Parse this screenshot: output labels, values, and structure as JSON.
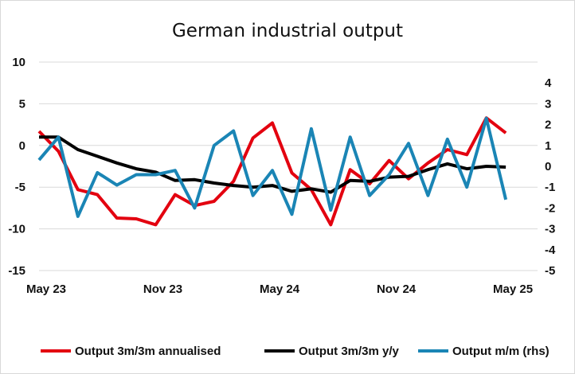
{
  "chart_data": {
    "type": "line",
    "title": "German industrial output",
    "x": [
      "May 23",
      "Jun 23",
      "Jul 23",
      "Aug 23",
      "Sep 23",
      "Oct 23",
      "Nov 23",
      "Dec 23",
      "Jan 24",
      "Feb 24",
      "Mar 24",
      "Apr 24",
      "May 24",
      "Jun 24",
      "Jul 24",
      "Aug 24",
      "Sep 24",
      "Oct 24",
      "Nov 24",
      "Dec 24",
      "Jan 25",
      "Feb 25",
      "Mar 25",
      "Apr 25",
      "May 25"
    ],
    "x_tick_labels": [
      "May 23",
      "Nov 23",
      "May 24",
      "Nov 24",
      "May 25"
    ],
    "x_tick_indices": [
      0,
      6,
      12,
      18,
      24
    ],
    "y_left": {
      "min": -15,
      "max": 10,
      "ticks": [
        10,
        5,
        0,
        -5,
        -10,
        -15
      ]
    },
    "y_right": {
      "min": -5,
      "max": 5,
      "ticks": [
        4,
        3,
        2,
        1,
        0,
        -1,
        -2,
        -3,
        -4,
        -5
      ]
    },
    "grid": "horizontal",
    "legend_position": "bottom",
    "series": [
      {
        "name": "Output 3m/3m annualised",
        "axis": "left",
        "color": "#e3000f",
        "values": [
          1.7,
          -0.7,
          -5.3,
          -5.9,
          -8.7,
          -8.8,
          -9.5,
          -5.9,
          -7.2,
          -6.7,
          -4.3,
          0.9,
          2.7,
          -3.3,
          -5.3,
          -9.5,
          -2.9,
          -4.6,
          -1.8,
          -4.0,
          -2.1,
          -0.5,
          -1.1,
          3.3,
          1.5
        ]
      },
      {
        "name": "Output 3m/3m y/y",
        "axis": "left",
        "color": "#000000",
        "values": [
          1.0,
          1.0,
          -0.5,
          -1.3,
          -2.1,
          -2.8,
          -3.2,
          -4.2,
          -4.1,
          -4.5,
          -4.8,
          -5.0,
          -4.8,
          -5.5,
          -5.2,
          -5.6,
          -4.2,
          -4.3,
          -3.8,
          -3.7,
          -2.9,
          -2.2,
          -2.8,
          -2.5,
          -2.6
        ]
      },
      {
        "name": "Output m/m (rhs)",
        "axis": "right",
        "color": "#1a85b5",
        "values": [
          0.3,
          1.4,
          -2.4,
          -0.3,
          -0.9,
          -0.4,
          -0.4,
          -0.2,
          -2.0,
          1.0,
          1.7,
          -1.4,
          -0.2,
          -2.3,
          1.8,
          -2.1,
          1.4,
          -1.4,
          -0.4,
          1.1,
          -1.4,
          1.3,
          -1.0,
          2.3,
          -1.6
        ]
      }
    ]
  }
}
